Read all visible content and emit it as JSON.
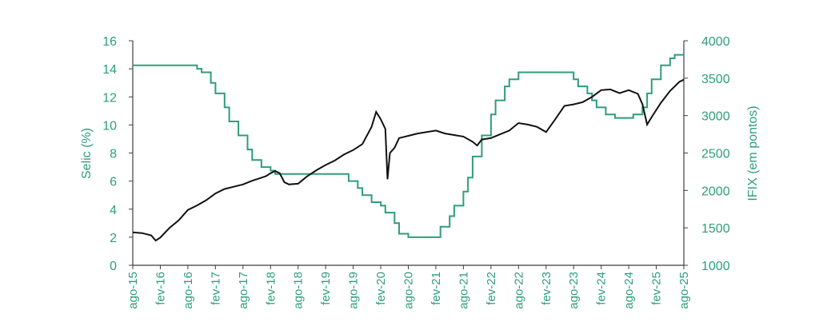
{
  "chart_data": {
    "type": "line",
    "title": "",
    "colors": {
      "selic": "#2e9e78",
      "ifix": "#111111",
      "axis": "#3f3f3f",
      "text_left": "#2e9e78",
      "text_right": "#2e9e78",
      "text_x": "#2e9e78"
    },
    "left_axis": {
      "label": "Selic (%)",
      "min": 0,
      "max": 16,
      "ticks": [
        0,
        2,
        4,
        6,
        8,
        10,
        12,
        14,
        16
      ]
    },
    "right_axis": {
      "label": "IFIX (em pontos)",
      "min": 1000,
      "max": 4000,
      "ticks": [
        1000,
        1500,
        2000,
        2500,
        3000,
        3500,
        4000
      ]
    },
    "x_ticks": [
      "ago-15",
      "fev-16",
      "ago-16",
      "fev-17",
      "ago-17",
      "fev-18",
      "ago-18",
      "fev-19",
      "ago-19",
      "fev-20",
      "ago-20",
      "fev-21",
      "ago-21",
      "fev-22",
      "ago-22",
      "fev-23",
      "ago-23",
      "fev-24",
      "ago-24",
      "fev-25",
      "ago-25"
    ],
    "series": [
      {
        "name": "Selic",
        "axis": "left",
        "step": true,
        "points": [
          [
            "2015-08",
            14.25
          ],
          [
            "2016-10",
            14.0
          ],
          [
            "2016-11",
            13.75
          ],
          [
            "2017-01",
            13.0
          ],
          [
            "2017-02",
            12.25
          ],
          [
            "2017-04",
            11.25
          ],
          [
            "2017-05",
            10.25
          ],
          [
            "2017-07",
            9.25
          ],
          [
            "2017-09",
            8.25
          ],
          [
            "2017-10",
            7.5
          ],
          [
            "2017-12",
            7.0
          ],
          [
            "2018-02",
            6.75
          ],
          [
            "2018-03",
            6.5
          ],
          [
            "2019-07",
            6.0
          ],
          [
            "2019-09",
            5.5
          ],
          [
            "2019-10",
            5.0
          ],
          [
            "2019-12",
            4.5
          ],
          [
            "2020-02",
            4.25
          ],
          [
            "2020-03",
            3.75
          ],
          [
            "2020-05",
            3.0
          ],
          [
            "2020-06",
            2.25
          ],
          [
            "2020-08",
            2.0
          ],
          [
            "2021-03",
            2.75
          ],
          [
            "2021-05",
            3.5
          ],
          [
            "2021-06",
            4.25
          ],
          [
            "2021-08",
            5.25
          ],
          [
            "2021-09",
            6.25
          ],
          [
            "2021-10",
            7.75
          ],
          [
            "2021-12",
            9.25
          ],
          [
            "2022-02",
            10.75
          ],
          [
            "2022-03",
            11.75
          ],
          [
            "2022-05",
            12.75
          ],
          [
            "2022-06",
            13.25
          ],
          [
            "2022-08",
            13.75
          ],
          [
            "2023-08",
            13.25
          ],
          [
            "2023-09",
            12.75
          ],
          [
            "2023-11",
            12.25
          ],
          [
            "2023-12",
            11.75
          ],
          [
            "2024-01",
            11.25
          ],
          [
            "2024-03",
            10.75
          ],
          [
            "2024-05",
            10.5
          ],
          [
            "2024-09",
            10.75
          ],
          [
            "2024-11",
            11.25
          ],
          [
            "2024-12",
            12.25
          ],
          [
            "2025-01",
            13.25
          ],
          [
            "2025-03",
            14.25
          ],
          [
            "2025-05",
            14.75
          ],
          [
            "2025-06",
            15.0
          ],
          [
            "2025-08",
            15.0
          ]
        ]
      },
      {
        "name": "IFIX",
        "axis": "right",
        "step": false,
        "points": [
          [
            "2015-08",
            1440
          ],
          [
            "2015-10",
            1430
          ],
          [
            "2015-12",
            1400
          ],
          [
            "2016-01",
            1330
          ],
          [
            "2016-02",
            1370
          ],
          [
            "2016-04",
            1500
          ],
          [
            "2016-06",
            1600
          ],
          [
            "2016-08",
            1740
          ],
          [
            "2016-10",
            1800
          ],
          [
            "2016-12",
            1870
          ],
          [
            "2017-02",
            1960
          ],
          [
            "2017-04",
            2020
          ],
          [
            "2017-06",
            2050
          ],
          [
            "2017-08",
            2080
          ],
          [
            "2017-10",
            2130
          ],
          [
            "2017-12",
            2170
          ],
          [
            "2018-01",
            2190
          ],
          [
            "2018-02",
            2230
          ],
          [
            "2018-03",
            2260
          ],
          [
            "2018-04",
            2230
          ],
          [
            "2018-05",
            2110
          ],
          [
            "2018-06",
            2080
          ],
          [
            "2018-08",
            2090
          ],
          [
            "2018-10",
            2190
          ],
          [
            "2018-12",
            2270
          ],
          [
            "2019-02",
            2340
          ],
          [
            "2019-04",
            2400
          ],
          [
            "2019-06",
            2480
          ],
          [
            "2019-08",
            2540
          ],
          [
            "2019-10",
            2620
          ],
          [
            "2019-12",
            2850
          ],
          [
            "2020-01",
            3050
          ],
          [
            "2020-02",
            2950
          ],
          [
            "2020-03",
            2820
          ],
          [
            "2020-03-15",
            2150
          ],
          [
            "2020-04",
            2500
          ],
          [
            "2020-05",
            2570
          ],
          [
            "2020-06",
            2700
          ],
          [
            "2020-08",
            2730
          ],
          [
            "2020-10",
            2760
          ],
          [
            "2020-12",
            2780
          ],
          [
            "2021-02",
            2800
          ],
          [
            "2021-04",
            2760
          ],
          [
            "2021-06",
            2740
          ],
          [
            "2021-08",
            2720
          ],
          [
            "2021-10",
            2650
          ],
          [
            "2021-11",
            2600
          ],
          [
            "2021-12",
            2680
          ],
          [
            "2022-02",
            2700
          ],
          [
            "2022-04",
            2750
          ],
          [
            "2022-06",
            2800
          ],
          [
            "2022-08",
            2900
          ],
          [
            "2022-10",
            2880
          ],
          [
            "2022-12",
            2850
          ],
          [
            "2023-02",
            2780
          ],
          [
            "2023-04",
            2950
          ],
          [
            "2023-06",
            3130
          ],
          [
            "2023-08",
            3150
          ],
          [
            "2023-10",
            3180
          ],
          [
            "2023-12",
            3250
          ],
          [
            "2024-02",
            3340
          ],
          [
            "2024-04",
            3350
          ],
          [
            "2024-06",
            3300
          ],
          [
            "2024-08",
            3340
          ],
          [
            "2024-10",
            3290
          ],
          [
            "2024-11",
            3150
          ],
          [
            "2024-12",
            2880
          ],
          [
            "2025-01",
            2980
          ],
          [
            "2025-03",
            3170
          ],
          [
            "2025-05",
            3330
          ],
          [
            "2025-07",
            3450
          ],
          [
            "2025-08",
            3480
          ]
        ]
      }
    ]
  }
}
